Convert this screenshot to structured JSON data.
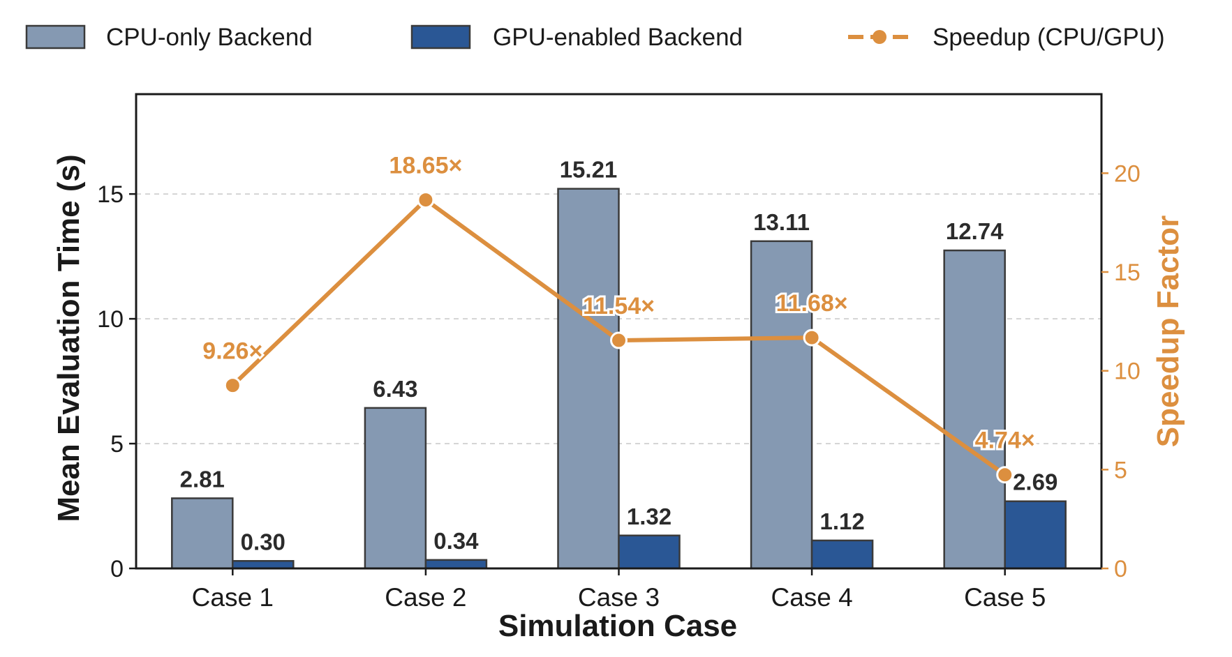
{
  "chart_data": {
    "type": "bar",
    "title": "",
    "xlabel": "Simulation Case",
    "ylabel": "Mean Evaluation Time (s)",
    "y2label": "Speedup Factor",
    "categories": [
      "Case 1",
      "Case 2",
      "Case 3",
      "Case 4",
      "Case 5"
    ],
    "ylim": [
      0,
      19
    ],
    "y2lim": [
      0,
      24
    ],
    "yticks": [
      0,
      5,
      10,
      15
    ],
    "y2ticks": [
      0,
      5,
      10,
      15,
      20
    ],
    "ytick_labels": [
      "0",
      "5",
      "10",
      "15"
    ],
    "y2tick_labels": [
      "0",
      "5",
      "10",
      "15",
      "20"
    ],
    "grid": "horizontal dashed",
    "legend_position": "top, outside plot",
    "series": [
      {
        "name": "CPU-only Backend",
        "axis": "left",
        "kind": "bar",
        "color": "#8599b2",
        "values": [
          2.81,
          6.43,
          15.21,
          13.11,
          12.74
        ],
        "labels": [
          "2.81",
          "6.43",
          "15.21",
          "13.11",
          "12.74"
        ]
      },
      {
        "name": "GPU-enabled Backend",
        "axis": "left",
        "kind": "bar",
        "color": "#2a5795",
        "values": [
          0.3,
          0.34,
          1.32,
          1.12,
          2.69
        ],
        "labels": [
          "0.30",
          "0.34",
          "1.32",
          "1.12",
          "2.69"
        ]
      },
      {
        "name": "Speedup (CPU/GPU)",
        "axis": "right",
        "kind": "line",
        "color": "#dc8f3f",
        "values": [
          9.26,
          18.65,
          11.54,
          11.68,
          4.74
        ],
        "labels": [
          "9.26×",
          "18.65×",
          "11.54×",
          "11.68×",
          "4.74×"
        ]
      }
    ],
    "colors": {
      "axis": "#1a1a1a",
      "bar_edge": "#3a3a3a",
      "grid": "#cccccc",
      "label_dark": "#2b2b2b"
    }
  }
}
